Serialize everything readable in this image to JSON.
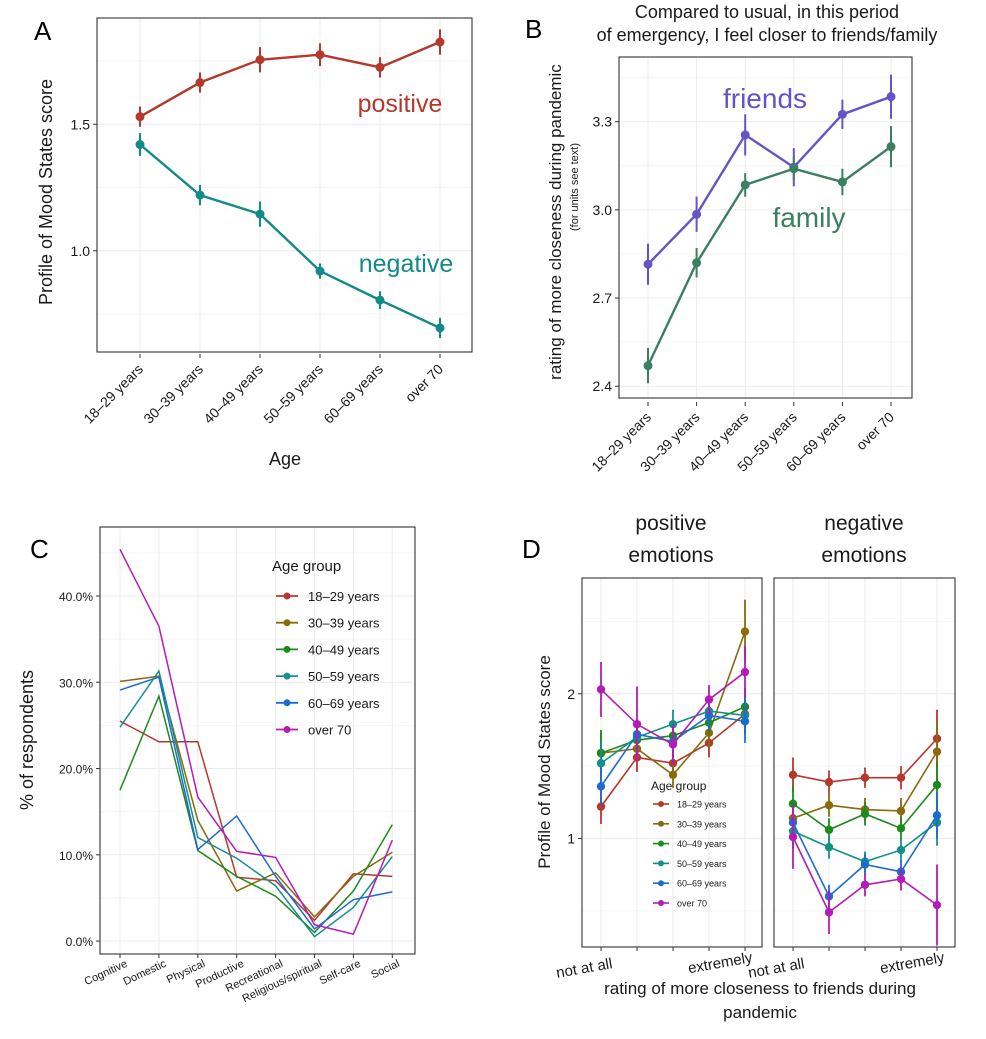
{
  "panels": {
    "a": "A",
    "b": "B",
    "c": "C",
    "d": "D"
  },
  "chart_data": [
    {
      "id": "A",
      "type": "line",
      "categories": [
        "18–29 years",
        "30–39 years",
        "40–49 years",
        "50–59 years",
        "60–69 years",
        "over 70"
      ],
      "series": [
        {
          "name": "positive",
          "color": "#b5382c",
          "values": [
            1.53,
            1.665,
            1.755,
            1.775,
            1.725,
            1.825
          ],
          "err": [
            0.04,
            0.04,
            0.05,
            0.045,
            0.04,
            0.05
          ]
        },
        {
          "name": "negative",
          "color": "#128a89",
          "values": [
            1.42,
            1.22,
            1.145,
            0.92,
            0.805,
            0.695
          ],
          "err": [
            0.045,
            0.04,
            0.05,
            0.03,
            0.035,
            0.04
          ]
        }
      ],
      "xlabel": "Age",
      "ylabel": "Profile of Mood States score",
      "ylim": [
        0.6,
        1.92
      ],
      "yticks": [
        "1.0",
        "1.5"
      ],
      "ytick_values": [
        1.0,
        1.5
      ],
      "grid": true
    },
    {
      "id": "B",
      "type": "line",
      "title_lines": [
        "Compared to usual, in this period",
        "of emergency, I feel closer to friends/family"
      ],
      "categories": [
        "18–29 years",
        "30–39 years",
        "40–49 years",
        "50–59 years",
        "60–69 years",
        "over 70"
      ],
      "series": [
        {
          "name": "friends",
          "color": "#6355c7",
          "values": [
            2.815,
            2.985,
            3.255,
            3.145,
            3.325,
            3.385
          ],
          "err": [
            0.07,
            0.06,
            0.07,
            0.065,
            0.05,
            0.075
          ]
        },
        {
          "name": "family",
          "color": "#3a8060",
          "values": [
            2.47,
            2.82,
            3.085,
            3.14,
            3.095,
            3.215
          ],
          "err": [
            0.06,
            0.05,
            0.04,
            0.04,
            0.045,
            0.07
          ]
        }
      ],
      "ylabel": "rating of more closeness during pandemic",
      "ylabel_sub": "(for units see text)",
      "ylim": [
        2.36,
        3.52
      ],
      "yticks": [
        "2.4",
        "2.7",
        "3.0",
        "3.3"
      ],
      "ytick_values": [
        2.4,
        2.7,
        3.0,
        3.3
      ],
      "grid": true
    },
    {
      "id": "C",
      "type": "line",
      "categories": [
        "Cognitive",
        "Domestic",
        "Physical",
        "Productive",
        "Recreational",
        "Religious/spiritual",
        "Self-care",
        "Social"
      ],
      "series": [
        {
          "name": "18–29 years",
          "color": "#b5382c",
          "values": [
            25.5,
            23.1,
            23.1,
            7.4,
            7.0,
            2.4,
            7.8,
            7.5
          ]
        },
        {
          "name": "30–39 years",
          "color": "#8a6a0c",
          "values": [
            30.1,
            30.7,
            14.0,
            5.8,
            7.9,
            2.8,
            7.5,
            10.3
          ]
        },
        {
          "name": "40–49 years",
          "color": "#1c8a1c",
          "values": [
            17.5,
            28.4,
            10.5,
            7.5,
            5.2,
            1.0,
            5.8,
            13.5
          ]
        },
        {
          "name": "50–59 years",
          "color": "#168f8a",
          "values": [
            24.8,
            31.3,
            12.0,
            9.6,
            6.4,
            0.5,
            3.9,
            9.8
          ]
        },
        {
          "name": "60–69 years",
          "color": "#1c6bd1",
          "values": [
            29.1,
            30.6,
            10.6,
            14.5,
            7.5,
            1.4,
            4.8,
            5.7
          ]
        },
        {
          "name": "over 70",
          "color": "#b51bb5",
          "values": [
            45.4,
            36.5,
            16.7,
            10.4,
            9.7,
            1.9,
            0.8,
            11.7
          ]
        }
      ],
      "legend_title": "Age  group",
      "legend_position": "top-right",
      "ylabel": "% of respondents",
      "ylim": [
        -1.5,
        48
      ],
      "yticks": [
        "0.0%",
        "10.0%",
        "20.0%",
        "30.0%",
        "40.0%"
      ],
      "ytick_values": [
        0,
        10,
        20,
        30,
        40
      ],
      "grid": true
    },
    {
      "id": "D",
      "type": "line",
      "facets": [
        {
          "title_lines": [
            "positive",
            "emotions"
          ],
          "series": [
            {
              "name": "18–29 years",
              "values": [
                1.22,
                1.56,
                1.52,
                1.66,
                1.86
              ],
              "err": [
                0.12,
                0.1,
                0.09,
                0.1,
                0.14
              ]
            },
            {
              "name": "30–39 years",
              "values": [
                1.59,
                1.62,
                1.44,
                1.73,
                2.43
              ],
              "err": [
                0.14,
                0.1,
                0.09,
                0.1,
                0.22
              ]
            },
            {
              "name": "40–49 years",
              "values": [
                1.59,
                1.68,
                1.71,
                1.8,
                1.91
              ],
              "err": [
                0.16,
                0.1,
                0.09,
                0.08,
                0.13
              ]
            },
            {
              "name": "50–59 years",
              "values": [
                1.52,
                1.7,
                1.79,
                1.88,
                1.85
              ],
              "err": [
                0.16,
                0.11,
                0.1,
                0.08,
                0.12
              ]
            },
            {
              "name": "60–69 years",
              "values": [
                1.36,
                1.72,
                1.67,
                1.85,
                1.81
              ],
              "err": [
                0.13,
                0.1,
                0.09,
                0.1,
                0.15
              ]
            },
            {
              "name": "over 70",
              "values": [
                2.03,
                1.79,
                1.65,
                1.96,
                2.15
              ],
              "err": [
                0.19,
                0.26,
                0.14,
                0.1,
                0.18
              ]
            }
          ]
        },
        {
          "title_lines": [
            "negative",
            "emotions"
          ],
          "series": [
            {
              "name": "18–29 years",
              "values": [
                1.44,
                1.39,
                1.42,
                1.42,
                1.69
              ],
              "err": [
                0.12,
                0.08,
                0.07,
                0.08,
                0.2
              ]
            },
            {
              "name": "30–39 years",
              "values": [
                1.14,
                1.23,
                1.2,
                1.19,
                1.6
              ],
              "err": [
                0.12,
                0.08,
                0.08,
                0.09,
                0.2
              ]
            },
            {
              "name": "40–49 years",
              "values": [
                1.24,
                1.06,
                1.17,
                1.07,
                1.37
              ],
              "err": [
                0.12,
                0.08,
                0.08,
                0.08,
                0.16
              ]
            },
            {
              "name": "50–59 years",
              "values": [
                1.05,
                0.94,
                0.84,
                0.92,
                1.11
              ],
              "err": [
                0.12,
                0.08,
                0.07,
                0.08,
                0.16
              ]
            },
            {
              "name": "60–69 years",
              "values": [
                1.11,
                0.6,
                0.82,
                0.77,
                1.16
              ],
              "err": [
                0.12,
                0.08,
                0.07,
                0.08,
                0.16
              ]
            },
            {
              "name": "over 70",
              "values": [
                1.01,
                0.49,
                0.68,
                0.72,
                0.54
              ],
              "err": [
                0.22,
                0.15,
                0.08,
                0.08,
                0.28
              ]
            }
          ]
        }
      ],
      "series_colors": [
        "#b5382c",
        "#8a6a0c",
        "#1c8a1c",
        "#168f8a",
        "#1c6bd1",
        "#b51bb5"
      ],
      "x": [
        1,
        2,
        3,
        4,
        5
      ],
      "xtick_labels": [
        "not at all",
        "",
        "",
        "",
        "extremely"
      ],
      "legend_title": "Age  group",
      "legend_items": [
        "18–29 years",
        "30–39 years",
        "40–49 years",
        "50–59 years",
        "60–69 years",
        "over 70"
      ],
      "xlabel_lines": [
        "rating of more closeness to friends during",
        "pandemic"
      ],
      "ylabel": "Profile of Mood States score",
      "ylim": [
        0.25,
        2.8
      ],
      "yticks": [
        "1",
        "2"
      ],
      "ytick_values": [
        1,
        2
      ],
      "grid": true
    }
  ]
}
